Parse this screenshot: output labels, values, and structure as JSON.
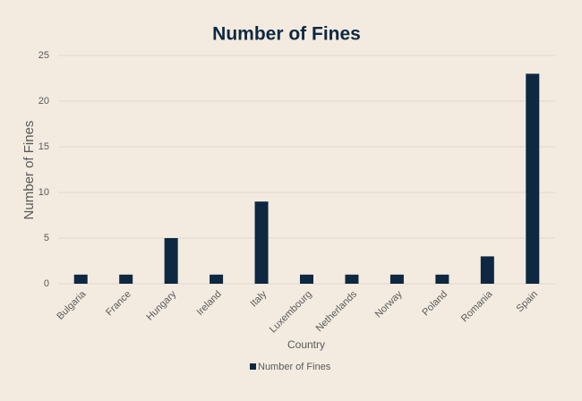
{
  "chart_data": {
    "type": "bar",
    "title": "Number of Fines",
    "x_label": "Country",
    "y_label": "Number of Fines",
    "categories": [
      "Bulgaria",
      "France",
      "Hungary",
      "Ireland",
      "Italy",
      "Luxembourg",
      "Netherlands",
      "Norway",
      "Poland",
      "Romania",
      "Spain"
    ],
    "series": [
      {
        "name": "Number of Fines",
        "color": "#0e2841",
        "values": [
          1,
          1,
          5,
          1,
          9,
          1,
          1,
          1,
          1,
          3,
          23
        ]
      }
    ],
    "ylim": [
      0,
      25
    ],
    "yticks": [
      0,
      5,
      10,
      15,
      20,
      25
    ],
    "grid": true,
    "legend": "bottom"
  }
}
